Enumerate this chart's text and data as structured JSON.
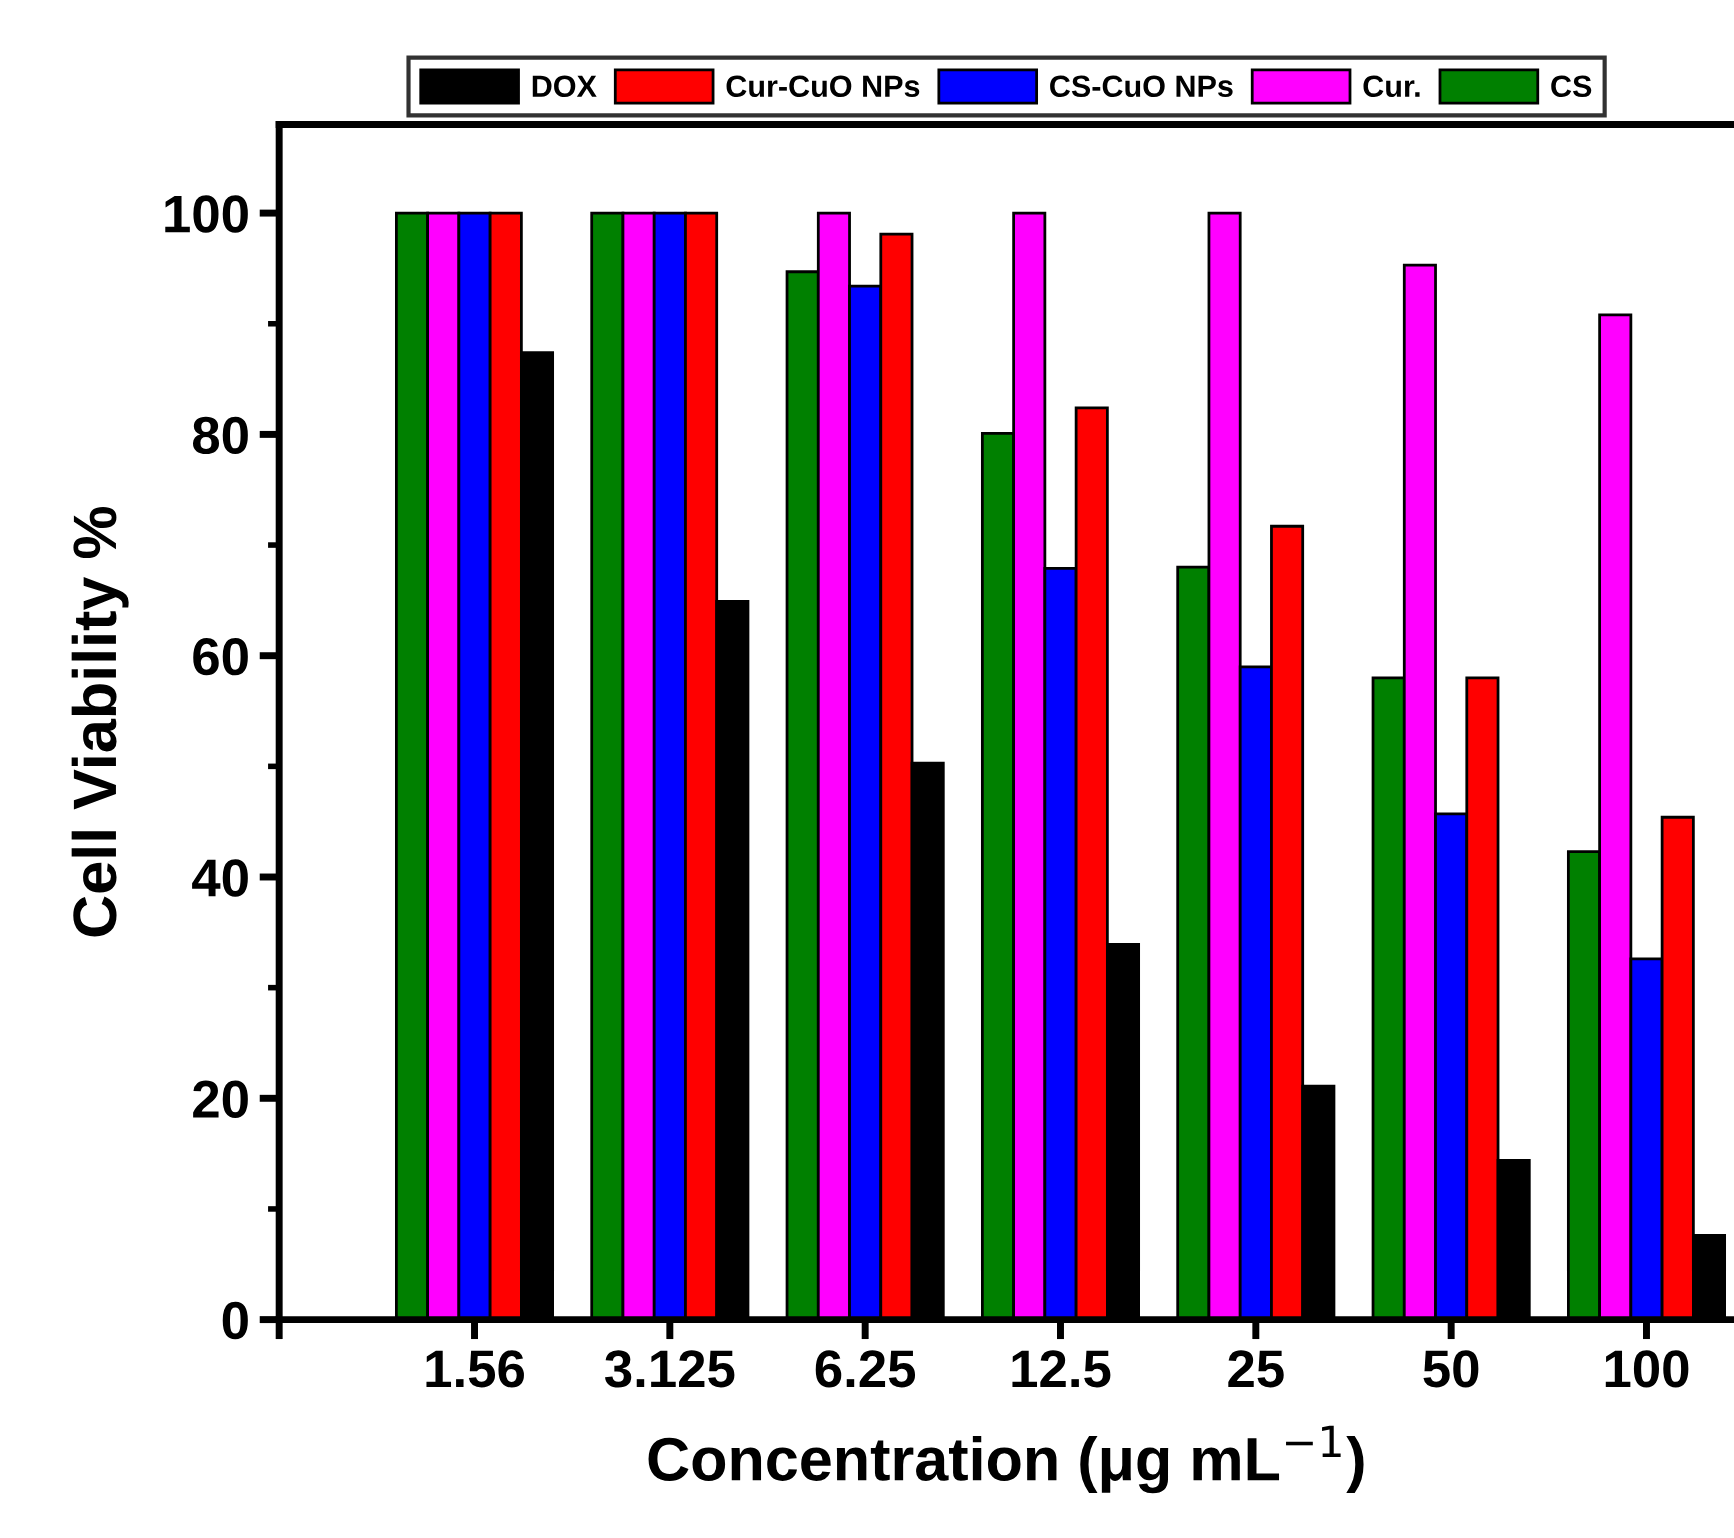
{
  "chart_data": {
    "type": "bar",
    "xlabel": "Concentration (μg mL$^{−1}$)",
    "ylabel": "Cell Viability %",
    "categories": [
      "1.56",
      "3.125",
      "6.25",
      "12.5",
      "25",
      "50",
      "100"
    ],
    "series": [
      {
        "name": "CS",
        "color": "#008000",
        "values": [
          100,
          100,
          94.7,
          80.1,
          68.0,
          58.0,
          42.3
        ]
      },
      {
        "name": "Cur.",
        "color": "#ff00ff",
        "values": [
          100,
          100,
          100,
          100,
          100,
          95.3,
          90.8
        ]
      },
      {
        "name": "CS-CuO NPs",
        "color": "#0000ff",
        "values": [
          100,
          100,
          93.4,
          67.9,
          59.0,
          45.7,
          32.6
        ]
      },
      {
        "name": "Cur-CuO NPs",
        "color": "#ff0000",
        "values": [
          100,
          100,
          98.1,
          82.4,
          71.7,
          58.0,
          45.4
        ]
      },
      {
        "name": "DOX",
        "color": "#000000",
        "values": [
          87.4,
          64.9,
          50.3,
          33.9,
          21.1,
          14.4,
          7.6
        ]
      }
    ],
    "ylim": [
      0,
      108
    ],
    "yticks": [
      0,
      {
        "value": 10,
        "label": null
      },
      20,
      {
        "value": 30,
        "label": null
      },
      40,
      {
        "value": 50,
        "label": null
      },
      60,
      {
        "value": 70,
        "label": null
      },
      80,
      {
        "value": 90,
        "label": null
      },
      100
    ],
    "grid": false,
    "legend": "top"
  }
}
